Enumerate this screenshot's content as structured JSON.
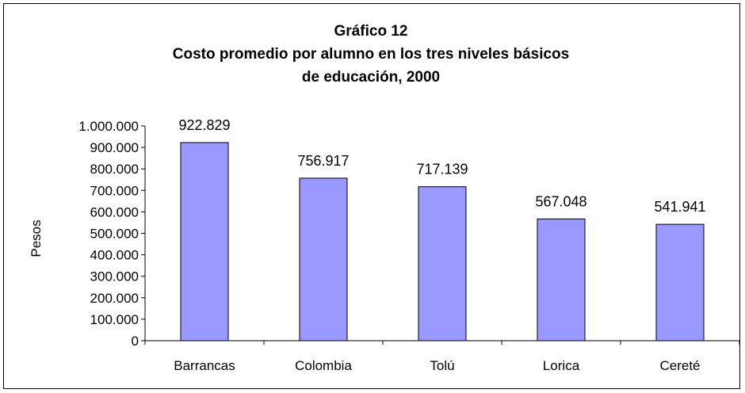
{
  "chart_data": {
    "type": "bar",
    "title_lines": [
      "Gráfico 12",
      "Costo promedio por alumno en los tres niveles básicos",
      "de educación, 2000"
    ],
    "xlabel": "",
    "ylabel": "Pesos",
    "categories": [
      "Barrancas",
      "Colombia",
      "Tolú",
      "Lorica",
      "Cereté"
    ],
    "values": [
      922829,
      756917,
      717139,
      567048,
      541941
    ],
    "value_labels": [
      "922.829",
      "756.917",
      "717.139",
      "567.048",
      "541.941"
    ],
    "ylim": [
      0,
      1000000
    ],
    "yticks": [
      0,
      100000,
      200000,
      300000,
      400000,
      500000,
      600000,
      700000,
      800000,
      900000,
      1000000
    ],
    "ytick_labels": [
      "0",
      "100.000",
      "200.000",
      "300.000",
      "400.000",
      "500.000",
      "600.000",
      "700.000",
      "800.000",
      "900.000",
      "1.000.000"
    ],
    "grid": false,
    "legend": "none",
    "bar_color": "#9999ff",
    "bar_edge_color": "#000000"
  }
}
